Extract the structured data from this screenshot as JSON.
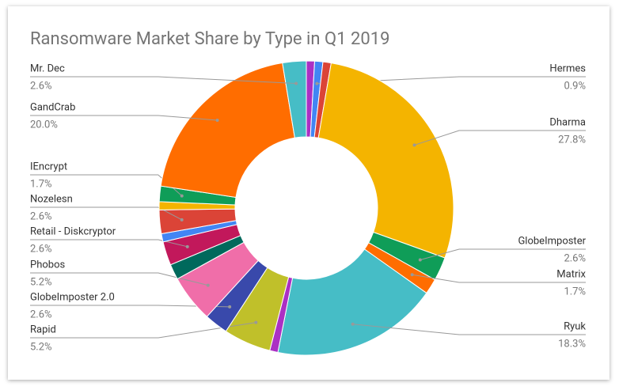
{
  "chart_data": {
    "type": "donut",
    "title": "Ransomware Market Share by Type in Q1 2019",
    "categories": [
      null,
      "Hermes",
      null,
      "Dharma",
      "GlobeImposter",
      "Matrix",
      "Ryuk",
      null,
      "Rapid",
      "GlobeImposter 2.0",
      "Phobos",
      null,
      "Retail - Diskcryptor",
      null,
      "Nozelesn",
      null,
      "IEncrypt",
      "GandCrab",
      "Mr. Dec"
    ],
    "values": [
      0.9,
      0.9,
      0.9,
      27.8,
      2.6,
      1.7,
      18.3,
      0.9,
      5.2,
      2.6,
      5.2,
      1.7,
      2.6,
      0.9,
      2.6,
      0.9,
      1.7,
      20.0,
      2.6
    ],
    "value_labels": [
      null,
      "0.9%",
      null,
      "27.8%",
      "2.6%",
      "1.7%",
      "18.3%",
      null,
      "5.2%",
      "2.6%",
      "5.2%",
      null,
      "2.6%",
      null,
      "2.6%",
      null,
      "1.7%",
      "20.0%",
      "2.6%"
    ],
    "colors": [
      "#ab30c4",
      "#4285f4",
      "#db4437",
      "#f4b400",
      "#0f9d58",
      "#ff6d00",
      "#46bdc6",
      "#ab30c4",
      "#c0c02a",
      "#3949ab",
      "#f06ea9",
      "#00695c",
      "#c2185b",
      "#4285f4",
      "#db4437",
      "#f4b400",
      "#0f9d58",
      "#ff6d00",
      "#46bdc6"
    ]
  }
}
